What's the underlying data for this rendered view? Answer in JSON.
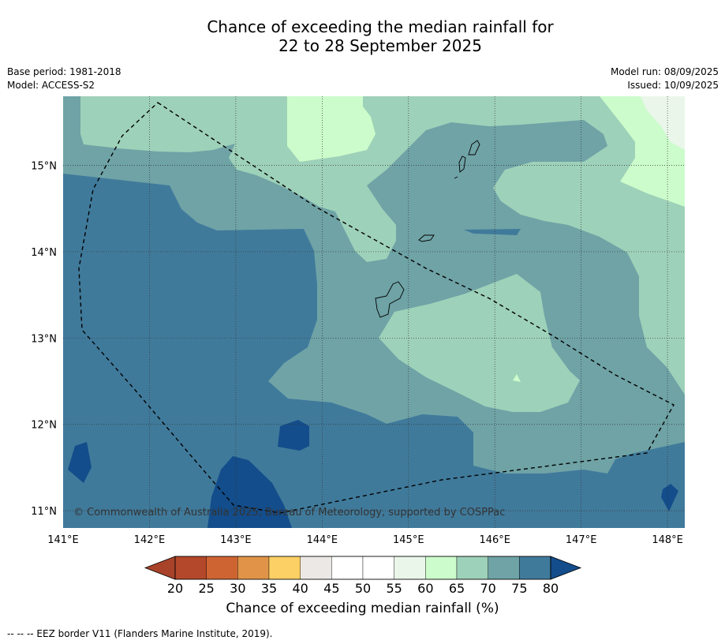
{
  "title": {
    "line1": "Chance of exceeding the median rainfall for",
    "line2": "22 to 28 September 2025"
  },
  "meta": {
    "base_period": "Base period: 1981-2018",
    "model": "Model: ACCESS-S2",
    "model_run": "Model run: 08/09/2025",
    "issued": "Issued: 10/09/2025"
  },
  "map": {
    "lon_range": [
      141.0,
      148.2
    ],
    "lat_range": [
      10.8,
      15.8
    ],
    "lon_ticks": [
      "141°E",
      "142°E",
      "143°E",
      "144°E",
      "145°E",
      "146°E",
      "147°E",
      "148°E"
    ],
    "lat_ticks": [
      "11°N",
      "12°N",
      "13°N",
      "14°N",
      "15°N"
    ],
    "copyright": "© Commonwealth of Australia 2025, Bureau of Meteorology, supported by COSPPac",
    "colors": {
      "gt80": "#134d8b",
      "75_80": "#407a9b",
      "70_75": "#6fa3a6",
      "65_70": "#9ed1b9",
      "60_65": "#ccfccb",
      "55_60": "#eaf6ea"
    }
  },
  "colorbar": {
    "title": "Chance of exceeding median rainfall (%)",
    "ticks": [
      "20",
      "25",
      "30",
      "35",
      "40",
      "45",
      "50",
      "55",
      "60",
      "65",
      "70",
      "75",
      "80"
    ],
    "colors": [
      "#a8432a",
      "#b4482a",
      "#cf6433",
      "#e19447",
      "#fdd065",
      "#ece8e5",
      "#ffffff",
      "#ffffff",
      "#eaf6ea",
      "#ccfccb",
      "#9ed1b9",
      "#6fa3a6",
      "#407a9b",
      "#134d8b"
    ]
  },
  "footnote": "-- -- -- EEZ border V11 (Flanders Marine Institute, 2019)."
}
